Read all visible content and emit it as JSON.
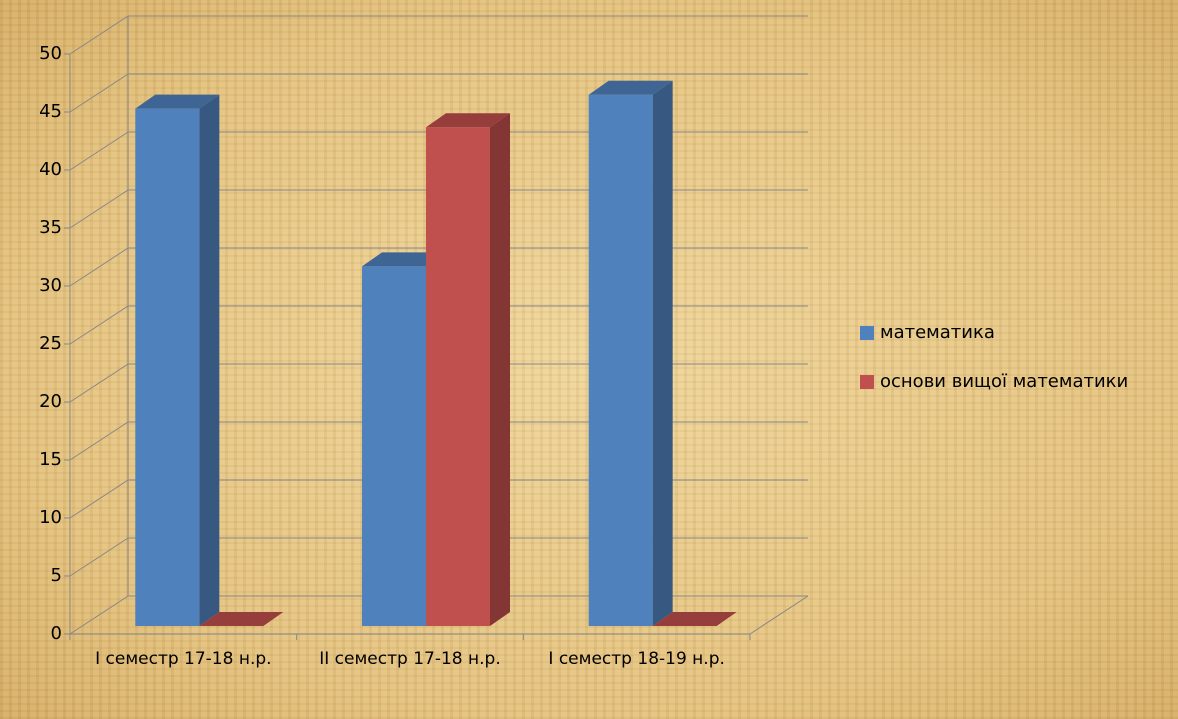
{
  "chart_data": {
    "type": "bar3d",
    "categories": [
      "I семестр 17-18 н.р.",
      "II семестр 17-18 н.р.",
      "I семестр 18-19 н.р."
    ],
    "series": [
      {
        "name": "математика",
        "color": "#4f81bd",
        "values": [
          44.6,
          31,
          45.8
        ]
      },
      {
        "name": "основи вищої математики",
        "color": "#c0504d",
        "values": [
          0,
          43,
          0
        ]
      }
    ],
    "ylim": [
      0,
      50
    ],
    "yticks": [
      0,
      5,
      10,
      15,
      20,
      25,
      30,
      35,
      40,
      45,
      50
    ],
    "grid": true,
    "legend": "right"
  }
}
